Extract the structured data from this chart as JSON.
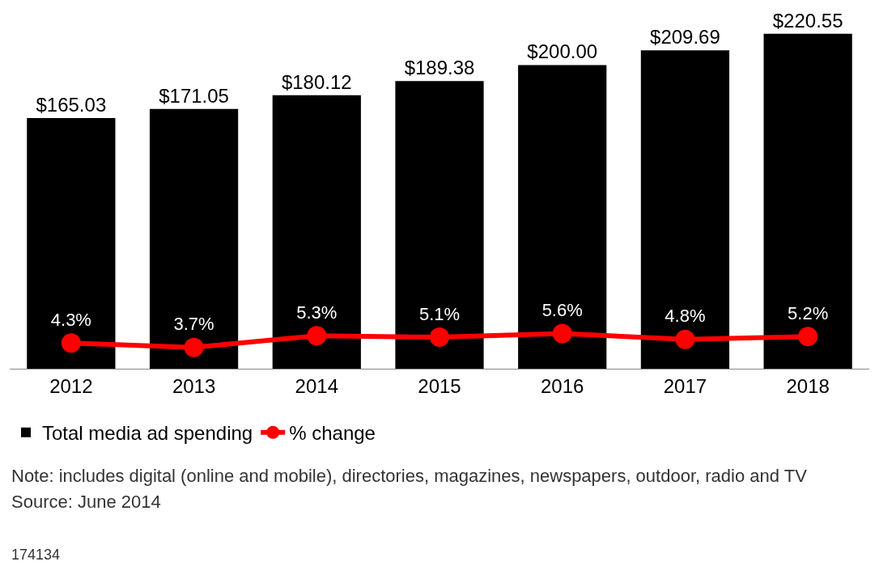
{
  "chart_data": {
    "type": "bar",
    "categories": [
      "2012",
      "2013",
      "2014",
      "2015",
      "2016",
      "2017",
      "2018"
    ],
    "series": [
      {
        "name": "Total media ad spending",
        "color": "#000000",
        "values": [
          165.03,
          171.05,
          180.12,
          189.38,
          200.0,
          209.69,
          220.55
        ],
        "value_labels": [
          "$165.03",
          "$171.05",
          "$180.12",
          "$189.38",
          "$200.00",
          "$209.69",
          "$220.55"
        ]
      },
      {
        "name": "% change",
        "type": "line",
        "axis": "y2",
        "color": "#ff0000",
        "values": [
          4.3,
          3.7,
          5.3,
          5.1,
          5.6,
          4.8,
          5.2
        ],
        "value_labels": [
          "4.3%",
          "3.7%",
          "5.3%",
          "5.1%",
          "5.6%",
          "4.8%",
          "5.2%"
        ]
      }
    ],
    "tick_labels": "x",
    "marker": "circle",
    "grid": false,
    "legend": "bottom left",
    "annotations": [
      "Note: includes digital (online and mobile), directories, magazines, newspapers, outdoor, radio and TV",
      "Source: June 2014",
      "174134"
    ]
  }
}
